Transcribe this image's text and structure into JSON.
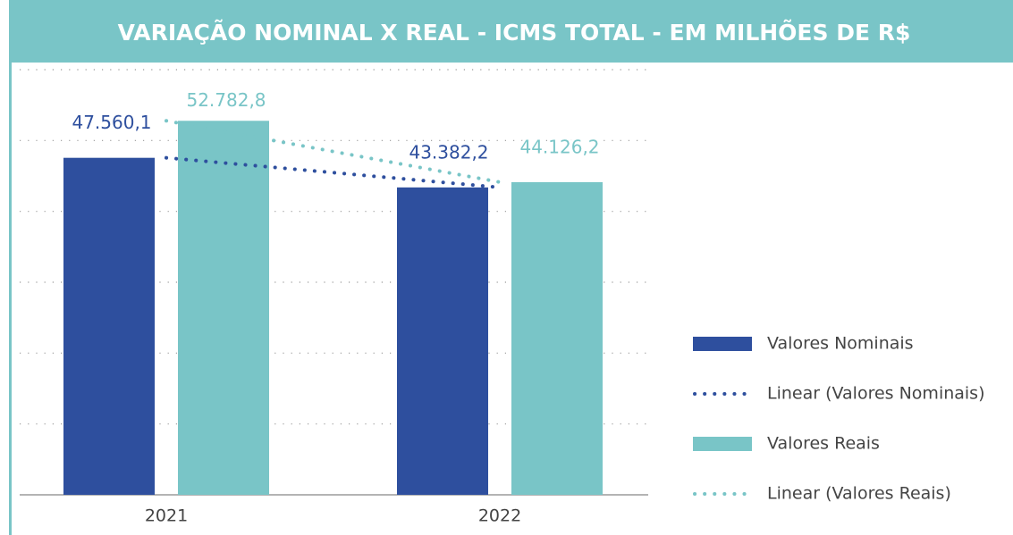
{
  "chart_data": {
    "type": "bar",
    "title": "VARIAÇÃO NOMINAL X REAL - ICMS TOTAL - EM MILHÕES DE R$",
    "categories": [
      "2021",
      "2022"
    ],
    "series": [
      {
        "name": "Valores Nominais",
        "color": "#2e4f9e",
        "values": [
          47560.1,
          43382.2
        ],
        "value_labels": [
          "47.560,1",
          "43.382,2"
        ]
      },
      {
        "name": "Valores Reais",
        "color": "#79c5c7",
        "values": [
          52782.8,
          44126.2
        ],
        "value_labels": [
          "52.782,8",
          "44.126,2"
        ]
      }
    ],
    "trendlines": [
      {
        "name": "Linear (Valores Nominais)",
        "series": 0
      },
      {
        "name": "Linear (Valores Reais)",
        "series": 1
      }
    ],
    "ylim": [
      0,
      60000
    ],
    "yticks": [
      0,
      10000,
      20000,
      30000,
      40000,
      50000,
      60000
    ],
    "grid": true,
    "legend": "right"
  }
}
